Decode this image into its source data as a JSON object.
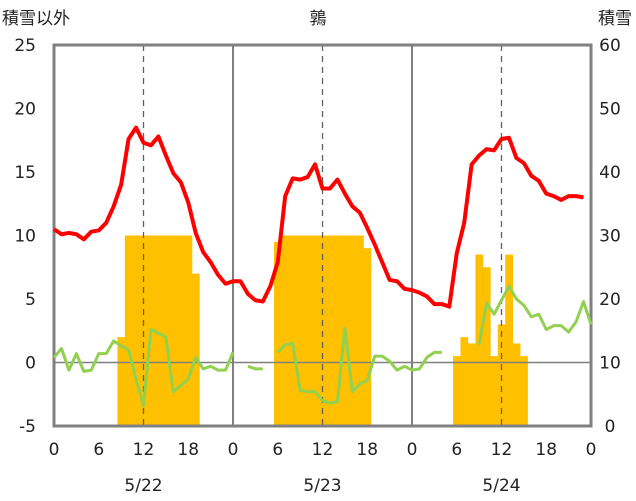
{
  "chart_data": {
    "type": "bar+line",
    "title": "鶉",
    "left_axis_title": "積雪以外",
    "right_axis_title": "積雪",
    "y_left": {
      "min": -5,
      "max": 25,
      "ticks": [
        -5,
        0,
        5,
        10,
        15,
        20,
        25
      ]
    },
    "y_right": {
      "min": 0,
      "max": 60,
      "ticks": [
        0,
        10,
        20,
        30,
        40,
        50,
        60
      ]
    },
    "x": {
      "min": 0,
      "max": 72,
      "ticks": [
        0,
        6,
        12,
        18,
        24,
        30,
        36,
        42,
        48,
        54,
        60,
        66,
        72
      ],
      "tick_labels": [
        "0",
        "6",
        "12",
        "18",
        "0",
        "6",
        "12",
        "18",
        "0",
        "6",
        "12",
        "18",
        "0"
      ]
    },
    "day_labels": [
      {
        "label": "5/22",
        "center_hour": 12
      },
      {
        "label": "5/23",
        "center_hour": 36
      },
      {
        "label": "5/24",
        "center_hour": 60
      }
    ],
    "day_separators": [
      24,
      48
    ],
    "dashed_lines": [
      12,
      36,
      60
    ],
    "grid": false,
    "colors": {
      "snow_bars": "#FFC000",
      "red_line": "#FF0000",
      "green_line": "#92D050",
      "frame": "#808080"
    },
    "snow_bars": {
      "axis": "right",
      "hours": [
        9,
        10,
        11,
        12,
        13,
        14,
        15,
        16,
        17,
        18,
        19,
        30,
        31,
        32,
        33,
        34,
        35,
        36,
        37,
        38,
        39,
        40,
        41,
        42,
        54,
        55,
        56,
        57,
        58,
        59,
        60,
        61,
        62,
        63
      ],
      "values": [
        14,
        30,
        30,
        30,
        30,
        30,
        30,
        30,
        30,
        30,
        24,
        29,
        30,
        30,
        30,
        30,
        30,
        30,
        30,
        30,
        30,
        30,
        30,
        28,
        11,
        14,
        13,
        27,
        25,
        11,
        16,
        27,
        13,
        11
      ]
    },
    "red_series": {
      "axis": "left",
      "values": [
        10.5,
        10.1,
        10.2,
        10.1,
        9.7,
        10.3,
        10.4,
        11.0,
        12.3,
        14.0,
        17.6,
        18.5,
        17.3,
        17.1,
        17.8,
        16.3,
        14.9,
        14.2,
        12.6,
        10.2,
        8.7,
        7.9,
        6.9,
        6.2,
        6.4,
        6.4,
        5.4,
        4.9,
        4.8,
        6.0,
        7.9,
        13.1,
        14.5,
        14.4,
        14.6,
        15.6,
        13.7,
        13.7,
        14.4,
        13.3,
        12.3,
        11.8,
        10.6,
        9.3,
        7.9,
        6.5,
        6.4,
        5.8,
        5.7,
        5.5,
        5.2,
        4.6,
        4.6,
        4.4,
        8.6,
        11.0,
        15.6,
        16.3,
        16.8,
        16.7,
        17.6,
        17.7,
        16.1,
        15.7,
        14.7,
        14.3,
        13.3,
        13.1,
        12.8,
        13.1,
        13.1,
        13.0
      ]
    },
    "green_series": {
      "axis": "left",
      "values": [
        0.4,
        1.1,
        -0.6,
        0.7,
        -0.7,
        -0.6,
        0.7,
        0.7,
        1.7,
        1.3,
        1.0,
        -1.3,
        -3.4,
        2.6,
        2.3,
        2.0,
        -2.3,
        -1.8,
        -1.3,
        0.4,
        -0.5,
        -0.3,
        -0.6,
        -0.6,
        0.8,
        null,
        -0.3,
        -0.5,
        -0.5,
        null,
        0.8,
        1.4,
        1.5,
        -2.2,
        -2.3,
        -2.3,
        -3.0,
        -3.2,
        -3.1,
        2.7,
        -2.3,
        -1.7,
        -1.4,
        0.5,
        0.5,
        0.1,
        -0.6,
        -0.3,
        -0.6,
        -0.5,
        0.4,
        0.8,
        0.8,
        null,
        null,
        null,
        null,
        1.4,
        4.7,
        3.8,
        4.9,
        6.0,
        5.0,
        4.5,
        3.6,
        3.8,
        2.6,
        2.9,
        2.9,
        2.4,
        3.2,
        4.8,
        3.0
      ]
    }
  }
}
